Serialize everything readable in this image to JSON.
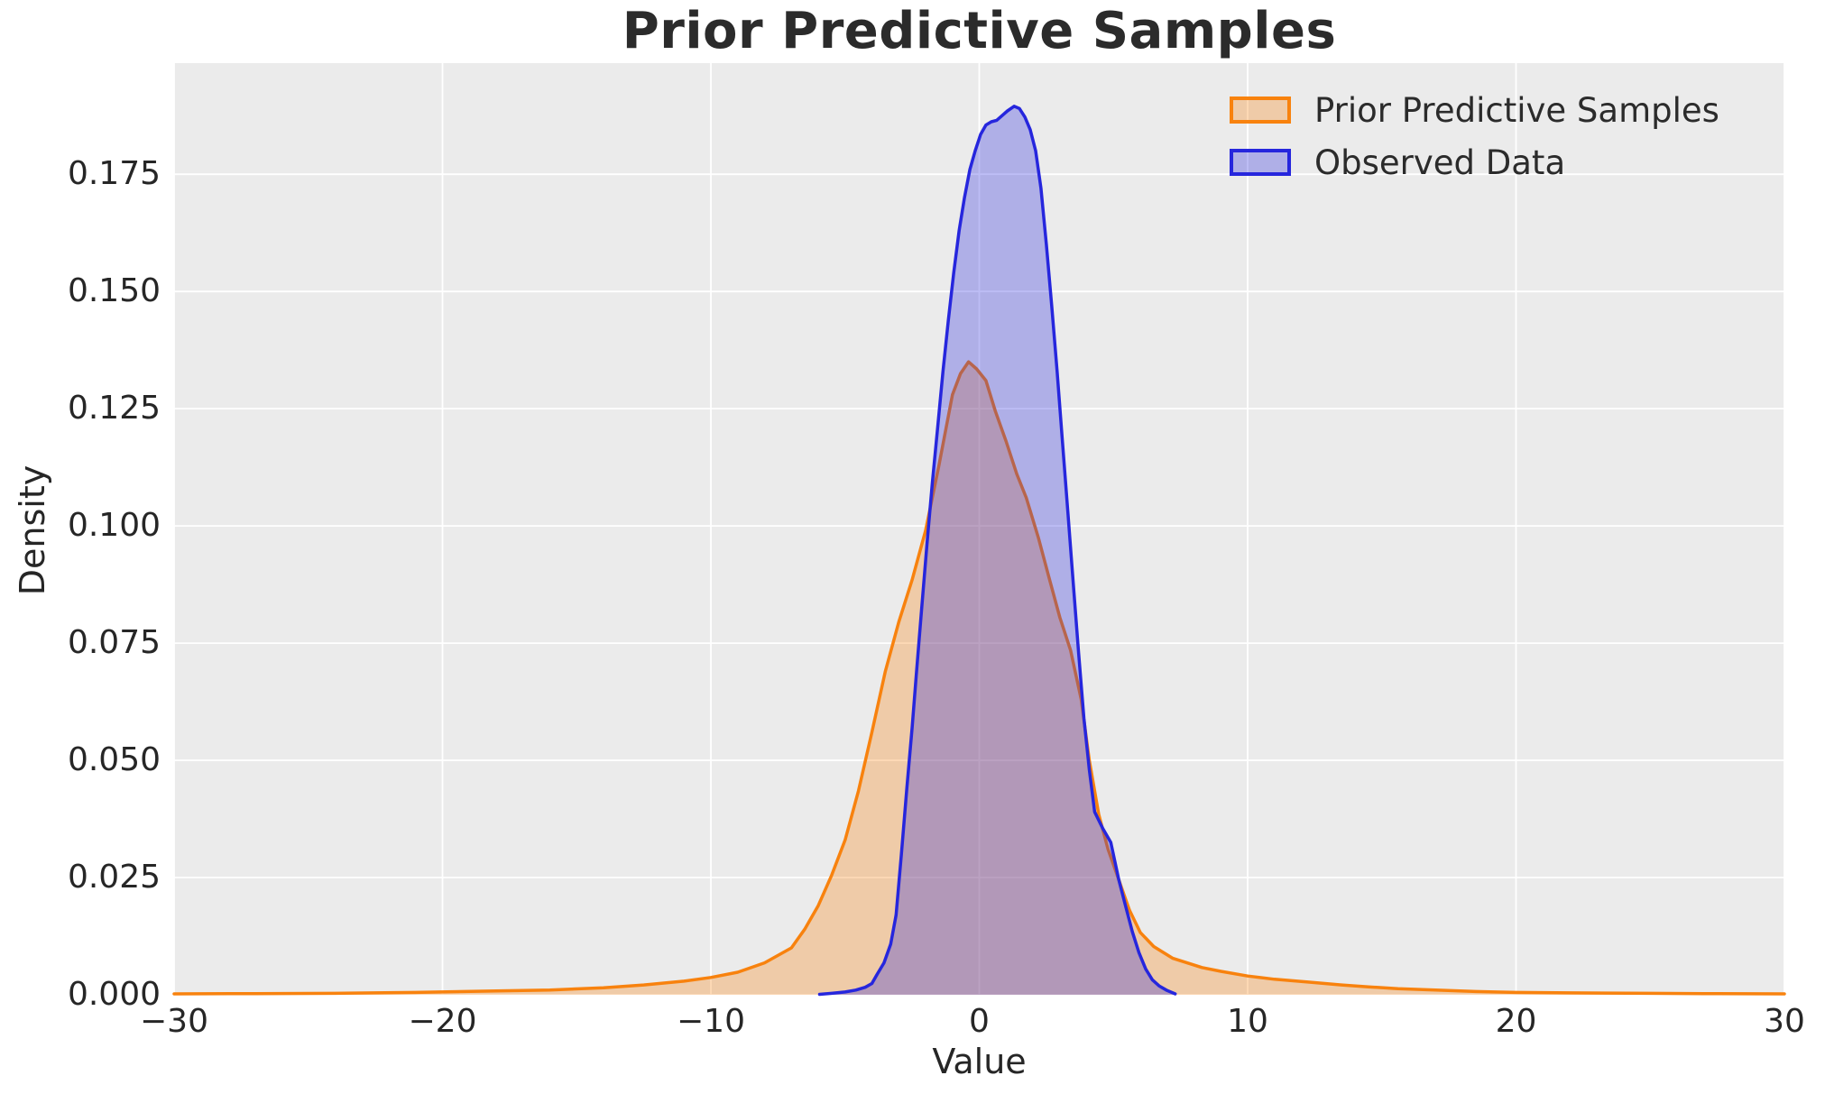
{
  "chart_data": {
    "type": "area",
    "subtype": "kde-density",
    "title": "Prior Predictive Samples",
    "xlabel": "Value",
    "ylabel": "Density",
    "xlim": [
      -30,
      30
    ],
    "ylim": [
      0,
      0.1987
    ],
    "grid": true,
    "legend_position": "upper right",
    "background_color": "#ebebeb",
    "grid_color": "#ffffff",
    "x_ticks": {
      "values": [
        -30,
        -20,
        -10,
        0,
        10,
        20,
        30
      ],
      "labels": [
        "−30",
        "−20",
        "−10",
        "0",
        "10",
        "20",
        "30"
      ]
    },
    "y_ticks": {
      "values": [
        0.0,
        0.025,
        0.05,
        0.075,
        0.1,
        0.125,
        0.15,
        0.175
      ],
      "labels": [
        "0.000",
        "0.025",
        "0.050",
        "0.075",
        "0.100",
        "0.125",
        "0.150",
        "0.175"
      ]
    },
    "series": [
      {
        "name": "Prior Predictive Samples",
        "color": "#f8820e",
        "fill_opacity": 0.3,
        "peak": {
          "x": -0.4,
          "density": 0.135
        },
        "points": [
          [
            -30,
            0.0002
          ],
          [
            -27,
            0.00025
          ],
          [
            -24,
            0.0003
          ],
          [
            -21,
            0.0005
          ],
          [
            -18,
            0.0008
          ],
          [
            -16,
            0.001
          ],
          [
            -14,
            0.0015
          ],
          [
            -12.5,
            0.0021
          ],
          [
            -11,
            0.0029
          ],
          [
            -10,
            0.0037
          ],
          [
            -9,
            0.0048
          ],
          [
            -8,
            0.0068
          ],
          [
            -7,
            0.01
          ],
          [
            -6.5,
            0.014
          ],
          [
            -6,
            0.019
          ],
          [
            -5.5,
            0.0255
          ],
          [
            -5,
            0.033
          ],
          [
            -4.5,
            0.0435
          ],
          [
            -4,
            0.056
          ],
          [
            -3.5,
            0.069
          ],
          [
            -3,
            0.0795
          ],
          [
            -2.5,
            0.0885
          ],
          [
            -2,
            0.099
          ],
          [
            -1.5,
            0.113
          ],
          [
            -1,
            0.128
          ],
          [
            -0.7,
            0.1325
          ],
          [
            -0.4,
            0.135
          ],
          [
            -0.1,
            0.1335
          ],
          [
            0.25,
            0.131
          ],
          [
            0.6,
            0.1245
          ],
          [
            1,
            0.118
          ],
          [
            1.4,
            0.111
          ],
          [
            1.75,
            0.106
          ],
          [
            2.2,
            0.0975
          ],
          [
            2.6,
            0.089
          ],
          [
            3,
            0.0805
          ],
          [
            3.4,
            0.0735
          ],
          [
            3.8,
            0.063
          ],
          [
            4.1,
            0.05
          ],
          [
            4.45,
            0.0385
          ],
          [
            4.8,
            0.031
          ],
          [
            5.2,
            0.0245
          ],
          [
            5.6,
            0.018
          ],
          [
            6,
            0.0133
          ],
          [
            6.5,
            0.0103
          ],
          [
            7.2,
            0.0078
          ],
          [
            8.3,
            0.0058
          ],
          [
            9,
            0.005
          ],
          [
            10,
            0.004
          ],
          [
            11,
            0.0033
          ],
          [
            12.3,
            0.0027
          ],
          [
            13.5,
            0.0021
          ],
          [
            14.5,
            0.0017
          ],
          [
            15.6,
            0.0013
          ],
          [
            17,
            0.001
          ],
          [
            18.5,
            0.0007
          ],
          [
            20,
            0.0005
          ],
          [
            22,
            0.0004
          ],
          [
            25,
            0.0003
          ],
          [
            27,
            0.00025
          ],
          [
            30,
            0.0002
          ]
        ]
      },
      {
        "name": "Observed Data",
        "color": "#2626dd",
        "fill_opacity": 0.3,
        "peak": {
          "x": 1.3,
          "density": 0.1895
        },
        "points": [
          [
            -5.95,
            0.0001
          ],
          [
            -5.5,
            0.0003
          ],
          [
            -5,
            0.0006
          ],
          [
            -4.6,
            0.001
          ],
          [
            -4.25,
            0.0016
          ],
          [
            -4,
            0.0024
          ],
          [
            -3.8,
            0.0044
          ],
          [
            -3.55,
            0.0068
          ],
          [
            -3.3,
            0.0108
          ],
          [
            -3.1,
            0.017
          ],
          [
            -2.9,
            0.03
          ],
          [
            -2.7,
            0.044
          ],
          [
            -2.5,
            0.057
          ],
          [
            -2.35,
            0.068
          ],
          [
            -2.15,
            0.082
          ],
          [
            -1.95,
            0.096
          ],
          [
            -1.75,
            0.109
          ],
          [
            -1.55,
            0.121
          ],
          [
            -1.35,
            0.133
          ],
          [
            -1.15,
            0.144
          ],
          [
            -0.95,
            0.154
          ],
          [
            -0.75,
            0.163
          ],
          [
            -0.55,
            0.17
          ],
          [
            -0.35,
            0.176
          ],
          [
            -0.15,
            0.18
          ],
          [
            0.05,
            0.1835
          ],
          [
            0.25,
            0.1855
          ],
          [
            0.45,
            0.1862
          ],
          [
            0.65,
            0.1865
          ],
          [
            0.85,
            0.1875
          ],
          [
            1.05,
            0.1885
          ],
          [
            1.3,
            0.1895
          ],
          [
            1.5,
            0.189
          ],
          [
            1.7,
            0.1872
          ],
          [
            1.9,
            0.1845
          ],
          [
            2.1,
            0.18
          ],
          [
            2.3,
            0.172
          ],
          [
            2.5,
            0.16
          ],
          [
            2.7,
            0.147
          ],
          [
            2.9,
            0.133
          ],
          [
            3.1,
            0.118
          ],
          [
            3.3,
            0.103
          ],
          [
            3.5,
            0.088
          ],
          [
            3.7,
            0.073
          ],
          [
            3.9,
            0.059
          ],
          [
            4.1,
            0.048
          ],
          [
            4.3,
            0.039
          ],
          [
            4.6,
            0.0355
          ],
          [
            4.9,
            0.0325
          ],
          [
            5.2,
            0.0245
          ],
          [
            5.45,
            0.019
          ],
          [
            5.7,
            0.0135
          ],
          [
            5.95,
            0.009
          ],
          [
            6.2,
            0.0055
          ],
          [
            6.45,
            0.0032
          ],
          [
            6.7,
            0.0019
          ],
          [
            7,
            0.0009
          ],
          [
            7.3,
            0.0002
          ]
        ]
      }
    ]
  }
}
